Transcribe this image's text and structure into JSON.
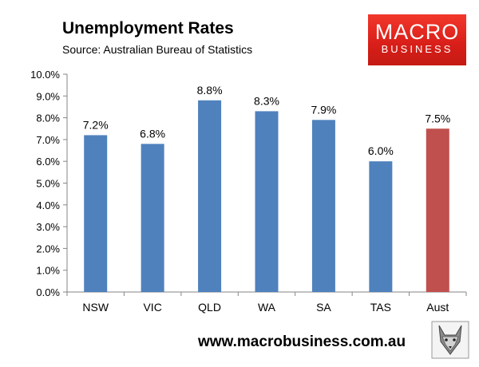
{
  "header": {
    "title": "Unemployment Rates",
    "subtitle": "Source: Australian Bureau of Statistics"
  },
  "logo": {
    "line1": "MACRO",
    "line2": "BUSINESS"
  },
  "footer": {
    "url": "www.macrobusiness.com.au"
  },
  "colors": {
    "bar": "#4f81bd",
    "highlight": "#c0504d",
    "logo_red": "#e0281e"
  },
  "chart_data": {
    "type": "bar",
    "title": "Unemployment Rates",
    "categories": [
      "NSW",
      "VIC",
      "QLD",
      "WA",
      "SA",
      "TAS",
      "Aust"
    ],
    "values": [
      7.2,
      6.8,
      8.8,
      8.3,
      7.9,
      6.0,
      7.5
    ],
    "data_labels": [
      "7.2%",
      "6.8%",
      "8.8%",
      "8.3%",
      "7.9%",
      "6.0%",
      "7.5%"
    ],
    "highlight_category": "Aust",
    "ylim": [
      0,
      10
    ],
    "yticks": [
      0,
      1,
      2,
      3,
      4,
      5,
      6,
      7,
      8,
      9,
      10
    ],
    "ytick_labels": [
      "0.0%",
      "1.0%",
      "2.0%",
      "3.0%",
      "4.0%",
      "5.0%",
      "6.0%",
      "7.0%",
      "8.0%",
      "9.0%",
      "10.0%"
    ],
    "xlabel": "",
    "ylabel": "",
    "grid": false,
    "legend": "none"
  }
}
